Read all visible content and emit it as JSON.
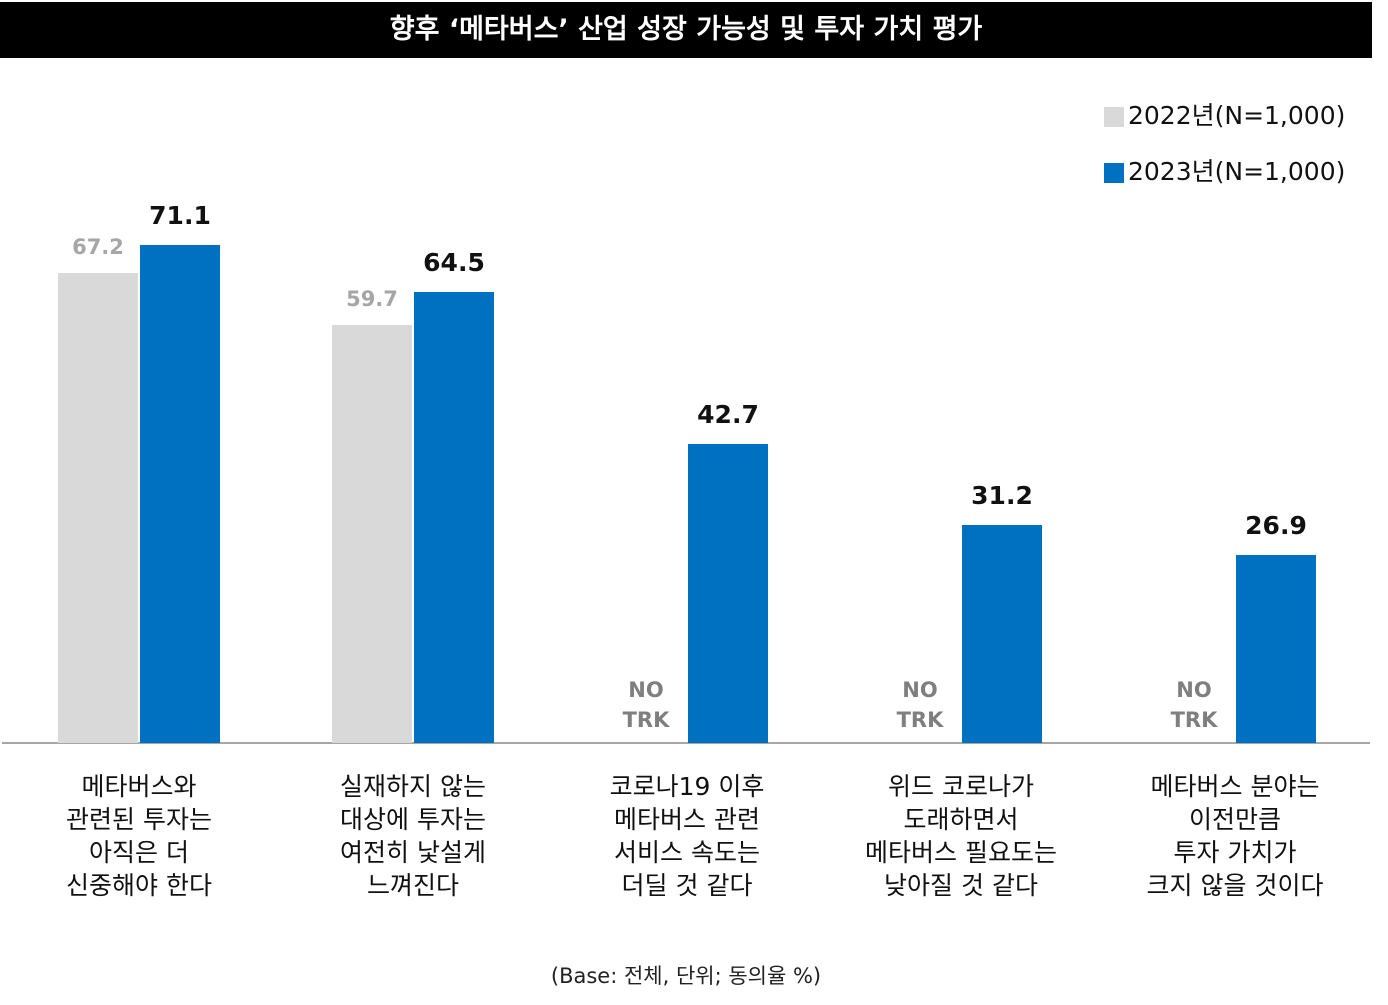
{
  "chart_data": {
    "type": "bar",
    "title": "향후 ‘메타버스’ 산업 성장 가능성 및 투자 가치 평가",
    "categories": [
      "메타버스와\n관련된 투자는\n아직은 더\n신중해야 한다",
      "실재하지 않는\n대상에 투자는\n여전히 낯설게\n느껴진다",
      "코로나19 이후\n메타버스 관련\n서비스 속도는\n더딜 것 같다",
      "위드 코로나가\n도래하면서\n메타버스 필요도는\n낮아질 것 같다",
      "메타버스 분야는\n이전만큼\n투자 가치가\n크지 않을 것이다"
    ],
    "series": [
      {
        "name": "2022년(N=1,000)",
        "color": "#d9d9d9",
        "values": [
          67.2,
          59.7,
          null,
          null,
          null
        ]
      },
      {
        "name": "2023년(N=1,000)",
        "color": "#0070c0",
        "values": [
          71.1,
          64.5,
          42.7,
          31.2,
          26.9
        ]
      }
    ],
    "no_data_label": "NO\nTRK",
    "ylim": [
      0,
      100
    ],
    "legend": "top-right",
    "footnote": "(Base: 전체, 단위; 동의율 %)"
  }
}
